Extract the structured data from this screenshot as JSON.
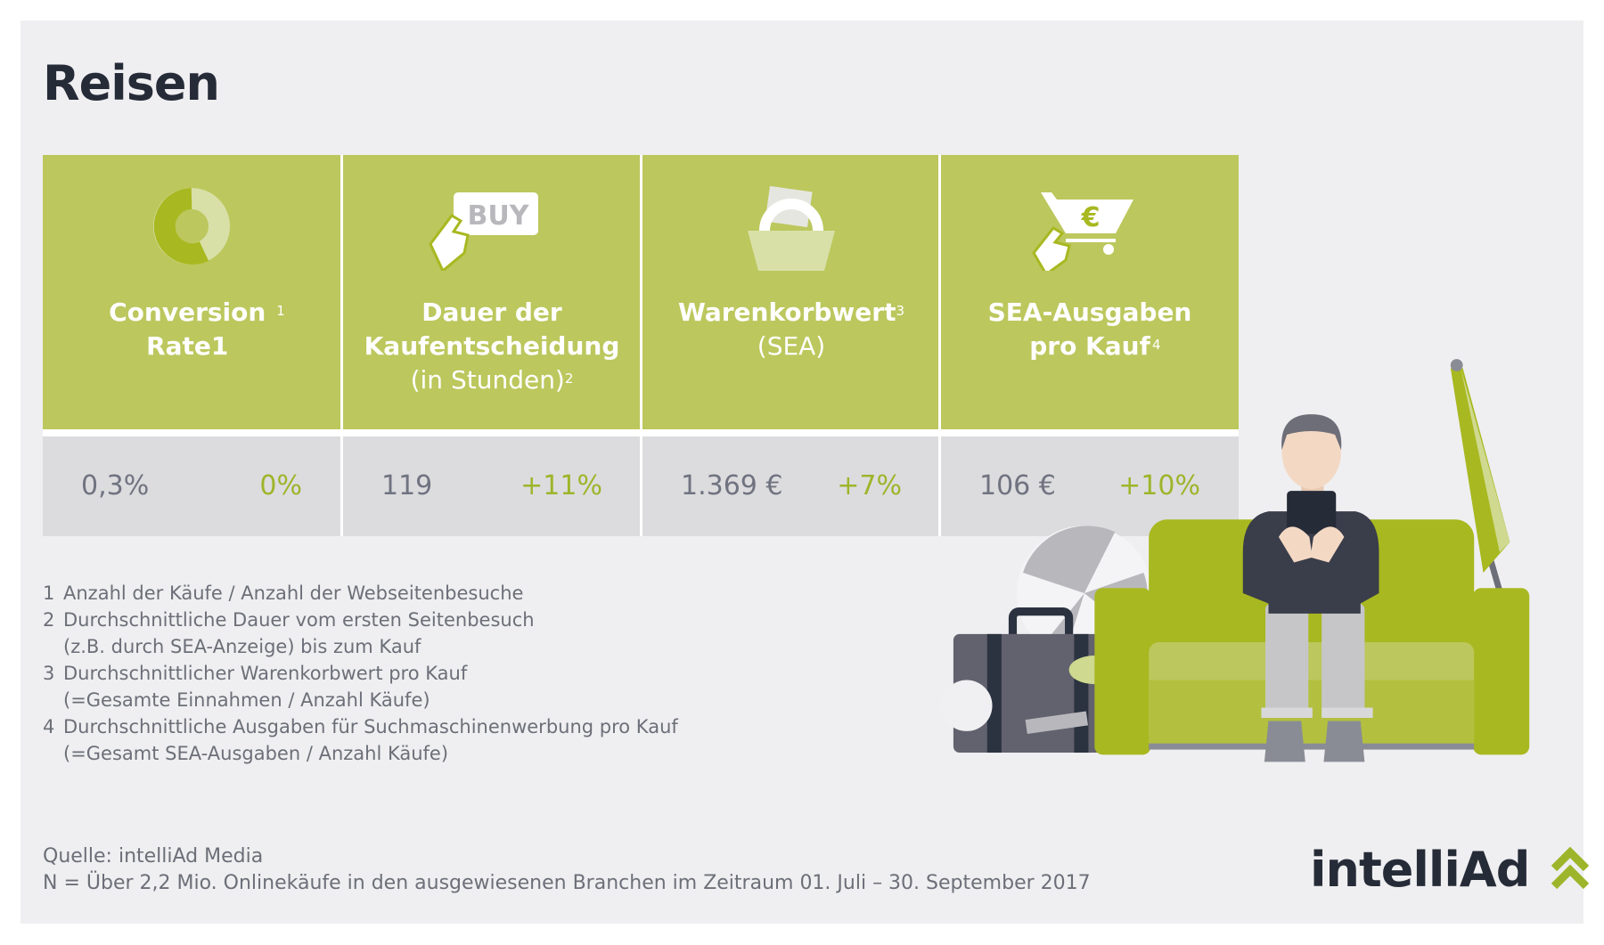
{
  "title": "Reisen",
  "metrics": [
    {
      "label_bold": "Conversion Rate1",
      "label_sub": "",
      "footnote": "1",
      "icon": "donut-chart-icon",
      "value": "0,3%",
      "change": "0%"
    },
    {
      "label_bold": "Dauer der Kaufentscheidung",
      "label_sub": "(in Stunden)",
      "footnote": "2",
      "icon": "buy-button-click-icon",
      "icon_text": "BUY",
      "value": "119",
      "change": "+11%"
    },
    {
      "label_bold": "Warenkorbwert",
      "label_sub": "(SEA)",
      "footnote": "3",
      "icon": "shopping-basket-icon",
      "value": "1.369 €",
      "change": "+7%"
    },
    {
      "label_bold": "SEA-Ausgaben pro Kauf",
      "label_sub": "",
      "footnote": "4",
      "icon": "shopping-cart-euro-icon",
      "icon_text": "€",
      "value": "106 €",
      "change": "+10%"
    }
  ],
  "footnotes": [
    {
      "num": "1",
      "lines": [
        "Anzahl der Käufe / Anzahl der Webseitenbesuche"
      ]
    },
    {
      "num": "2",
      "lines": [
        "Durchschnittliche Dauer vom ersten Seitenbesuch",
        "(z.B. durch SEA-Anzeige) bis zum Kauf"
      ]
    },
    {
      "num": "3",
      "lines": [
        "Durchschnittlicher Warenkorbwert pro Kauf",
        "(=Gesamte Einnahmen / Anzahl Käufe)"
      ]
    },
    {
      "num": "4",
      "lines": [
        "Durchschnittliche Ausgaben für Suchmaschinenwerbung pro Kauf",
        "(=Gesamt SEA-Ausgaben / Anzahl Käufe)"
      ]
    }
  ],
  "source": "Quelle: intelliAd Media",
  "sample": "N = Über 2,2 Mio. Onlinekäufe in den ausgewiesenen Branchen im Zeitraum 01. Juli – 30. September 2017",
  "logo": "intelliAd",
  "colors": {
    "accent": "#bcc75d",
    "accent_dark": "#a8b820",
    "text": "#262b38",
    "value_gray": "#707380",
    "change_green": "#9db52a"
  }
}
